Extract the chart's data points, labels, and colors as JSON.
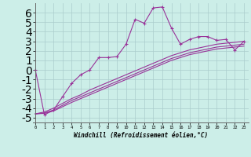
{
  "xlabel": "Windchill (Refroidissement éolien,°C)",
  "background_color": "#cceee8",
  "grid_color": "#aacccc",
  "line_color": "#993399",
  "x_ticks": [
    0,
    1,
    2,
    3,
    4,
    5,
    6,
    7,
    8,
    9,
    10,
    11,
    12,
    13,
    14,
    15,
    16,
    17,
    18,
    19,
    20,
    21,
    22,
    23
  ],
  "y_ticks": [
    -5,
    -4,
    -3,
    -2,
    -1,
    0,
    1,
    2,
    3,
    4,
    5,
    6
  ],
  "xlim": [
    -0.3,
    23.5
  ],
  "ylim": [
    -5.5,
    7.0
  ],
  "series1_x": [
    0,
    1,
    2,
    3,
    4,
    5,
    6,
    7,
    8,
    9,
    10,
    11,
    12,
    13,
    14,
    15,
    16,
    17,
    18,
    19,
    20,
    21,
    22,
    23
  ],
  "series1_y": [
    0.0,
    -4.7,
    -4.2,
    -2.8,
    -1.4,
    -0.5,
    0.0,
    1.3,
    1.3,
    1.4,
    2.7,
    5.3,
    4.9,
    6.5,
    6.6,
    4.4,
    2.7,
    3.2,
    3.5,
    3.5,
    3.1,
    3.2,
    2.1,
    3.0
  ],
  "series2_x": [
    0,
    1,
    2,
    3,
    4,
    5,
    6,
    7,
    8,
    9,
    10,
    11,
    12,
    13,
    14,
    15,
    16,
    17,
    18,
    19,
    20,
    21,
    22,
    23
  ],
  "series2_y": [
    -4.6,
    -4.4,
    -4.0,
    -3.5,
    -3.0,
    -2.6,
    -2.1,
    -1.7,
    -1.3,
    -0.9,
    -0.5,
    -0.1,
    0.3,
    0.7,
    1.1,
    1.5,
    1.8,
    2.1,
    2.3,
    2.5,
    2.7,
    2.8,
    2.9,
    3.0
  ],
  "series3_x": [
    0,
    1,
    2,
    3,
    4,
    5,
    6,
    7,
    8,
    9,
    10,
    11,
    12,
    13,
    14,
    15,
    16,
    17,
    18,
    19,
    20,
    21,
    22,
    23
  ],
  "series3_y": [
    -4.6,
    -4.5,
    -4.2,
    -3.7,
    -3.2,
    -2.8,
    -2.4,
    -2.0,
    -1.6,
    -1.2,
    -0.8,
    -0.4,
    0.0,
    0.4,
    0.8,
    1.2,
    1.5,
    1.8,
    2.0,
    2.2,
    2.4,
    2.5,
    2.6,
    2.7
  ],
  "series4_x": [
    0,
    1,
    2,
    3,
    4,
    5,
    6,
    7,
    8,
    9,
    10,
    11,
    12,
    13,
    14,
    15,
    16,
    17,
    18,
    19,
    20,
    21,
    22,
    23
  ],
  "series4_y": [
    -4.6,
    -4.55,
    -4.3,
    -3.85,
    -3.4,
    -3.0,
    -2.6,
    -2.2,
    -1.8,
    -1.4,
    -1.0,
    -0.6,
    -0.2,
    0.2,
    0.6,
    1.0,
    1.3,
    1.6,
    1.8,
    2.0,
    2.2,
    2.3,
    2.4,
    2.5
  ]
}
